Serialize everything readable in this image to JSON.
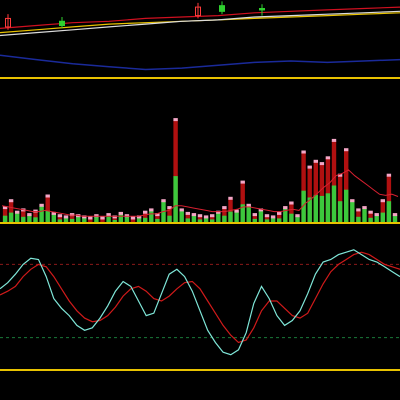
{
  "colors": {
    "background": "#000000",
    "separator": "#e8c200",
    "candle_up": "#ff3b3b",
    "candle_down": "#2fd12f",
    "ma_yellow": "#e8c200",
    "ma_white": "#dcdcdc",
    "ma_red": "#d01020",
    "ma_blue": "#1a2a9a",
    "volume_up": "#b01010",
    "volume_down": "#3cc83c",
    "volume_cap": "#f4a6c6",
    "volume_ma": "#d62030",
    "kdj_k": "#7fe6d8",
    "kdj_d": "#d01a1a",
    "ref_line_high": "#8a1a1a",
    "ref_line_low": "#1a7a3a"
  },
  "chart_data": [
    {
      "type": "candlestick",
      "title": "",
      "series": [
        {
          "name": "",
          "values": [
            10.2,
            10.4,
            10.6,
            10.8,
            10.9,
            11.0,
            11.1,
            11.2,
            11.3,
            11.4,
            11.5,
            11.6
          ]
        },
        {
          "name": "",
          "values": [
            10.0,
            10.2,
            10.4,
            10.6,
            10.8,
            11.0,
            11.1,
            11.3,
            11.4,
            11.5,
            11.6,
            11.7
          ]
        },
        {
          "name": "",
          "values": [
            10.5,
            10.7,
            10.9,
            11.0,
            11.2,
            11.3,
            11.4,
            11.6,
            11.7,
            11.8,
            11.9,
            12.0
          ]
        },
        {
          "name": "",
          "values": [
            8.6,
            8.3,
            8.0,
            7.8,
            7.6,
            7.7,
            7.9,
            8.1,
            8.2,
            8.1,
            8.2,
            8.3
          ]
        }
      ],
      "candles": [
        {
          "o": 10.6,
          "c": 11.2,
          "h": 11.5,
          "l": 10.4
        },
        {
          "o": 11.0,
          "c": 10.7,
          "h": 11.3,
          "l": 10.5
        },
        {
          "o": 11.4,
          "c": 12.0,
          "h": 12.3,
          "l": 11.2
        },
        {
          "o": 12.1,
          "c": 11.7,
          "h": 12.4,
          "l": 11.5
        },
        {
          "o": 11.9,
          "c": 11.8,
          "h": 12.2,
          "l": 11.4
        }
      ]
    },
    {
      "type": "bar",
      "title": "",
      "values": [
        12,
        18,
        8,
        10,
        6,
        9,
        14,
        22,
        7,
        5,
        4,
        6,
        5,
        4,
        3,
        5,
        3,
        6,
        4,
        7,
        5,
        3,
        4,
        8,
        10,
        6,
        18,
        12,
        88,
        10,
        7,
        6,
        5,
        4,
        5,
        8,
        12,
        20,
        9,
        34,
        14,
        6,
        10,
        5,
        4,
        7,
        12,
        16,
        5,
        60,
        47,
        52,
        50,
        55,
        70,
        40,
        62,
        18,
        10,
        12,
        8,
        6,
        18,
        40,
        6
      ],
      "up": [
        true,
        true,
        false,
        true,
        false,
        true,
        false,
        true,
        false,
        true,
        false,
        true,
        false,
        false,
        true,
        false,
        true,
        false,
        true,
        false,
        false,
        true,
        false,
        true,
        false,
        true,
        false,
        true,
        true,
        false,
        true,
        false,
        true,
        false,
        true,
        false,
        true,
        true,
        false,
        true,
        false,
        true,
        false,
        true,
        false,
        true,
        false,
        true,
        false,
        true,
        true,
        true,
        true,
        true,
        true,
        true,
        true,
        false,
        true,
        false,
        true,
        false,
        true,
        true,
        false
      ],
      "series": [
        {
          "name": "",
          "values": [
            14,
            13,
            12,
            11,
            10,
            9,
            9,
            10,
            9,
            8,
            7,
            6,
            6,
            5,
            5,
            5,
            5,
            5,
            5,
            5,
            5,
            5,
            5,
            6,
            7,
            7,
            9,
            10,
            14,
            14,
            13,
            12,
            11,
            10,
            9,
            9,
            9,
            10,
            11,
            13,
            13,
            12,
            11,
            10,
            9,
            9,
            10,
            11,
            10,
            16,
            20,
            25,
            30,
            34,
            40,
            42,
            45,
            40,
            36,
            32,
            28,
            24,
            23,
            24,
            22
          ]
        }
      ]
    },
    {
      "type": "line",
      "title": "",
      "reference_lines": [
        80,
        20
      ],
      "series": [
        {
          "name": "",
          "values": [
            60,
            65,
            72,
            80,
            85,
            84,
            70,
            52,
            44,
            38,
            30,
            26,
            28,
            36,
            46,
            58,
            66,
            62,
            50,
            38,
            40,
            56,
            72,
            76,
            70,
            58,
            42,
            26,
            16,
            8,
            6,
            10,
            24,
            48,
            62,
            52,
            38,
            30,
            34,
            42,
            56,
            72,
            82,
            84,
            88,
            90,
            92,
            88,
            84,
            82,
            78,
            74,
            70
          ]
        },
        {
          "name": "",
          "values": [
            55,
            58,
            62,
            70,
            76,
            80,
            78,
            70,
            60,
            50,
            42,
            36,
            33,
            34,
            38,
            45,
            54,
            60,
            62,
            58,
            52,
            50,
            54,
            60,
            65,
            66,
            60,
            50,
            40,
            30,
            22,
            16,
            18,
            28,
            42,
            50,
            50,
            44,
            38,
            36,
            40,
            52,
            64,
            74,
            80,
            84,
            88,
            90,
            88,
            84,
            80,
            78,
            76
          ]
        }
      ]
    }
  ]
}
